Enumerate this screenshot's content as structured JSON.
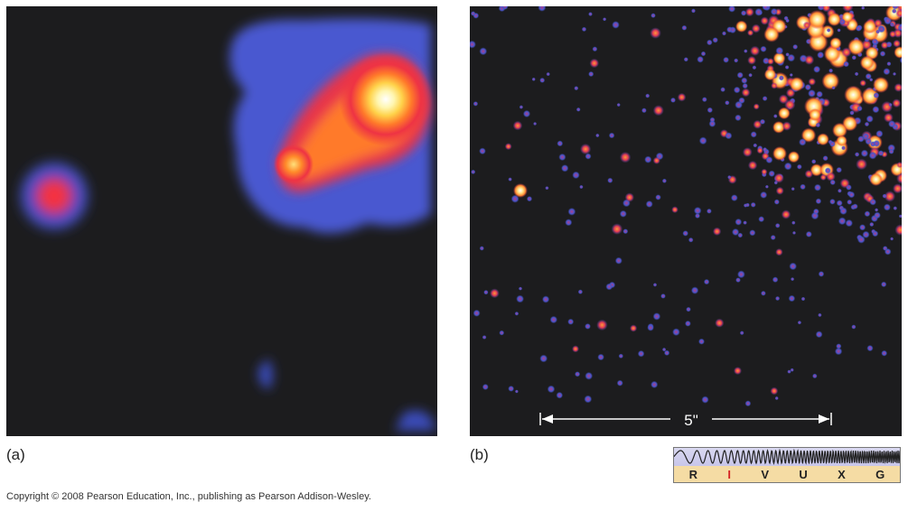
{
  "panels": {
    "a": {
      "label": "(a)"
    },
    "b": {
      "label": "(b)",
      "scale_bar": "5\""
    }
  },
  "spectrum": {
    "bands": [
      "R",
      "I",
      "V",
      "U",
      "X",
      "G"
    ],
    "active_band": "I",
    "active_color": "#d42424"
  },
  "copyright": "Copyright © 2008 Pearson Education, Inc., publishing as Pearson Addison-Wesley.",
  "colors": {
    "background": "#1c1c1e",
    "glow_blue": "#4455cc",
    "glow_red": "#ee3344",
    "glow_yellow": "#ffee88"
  }
}
